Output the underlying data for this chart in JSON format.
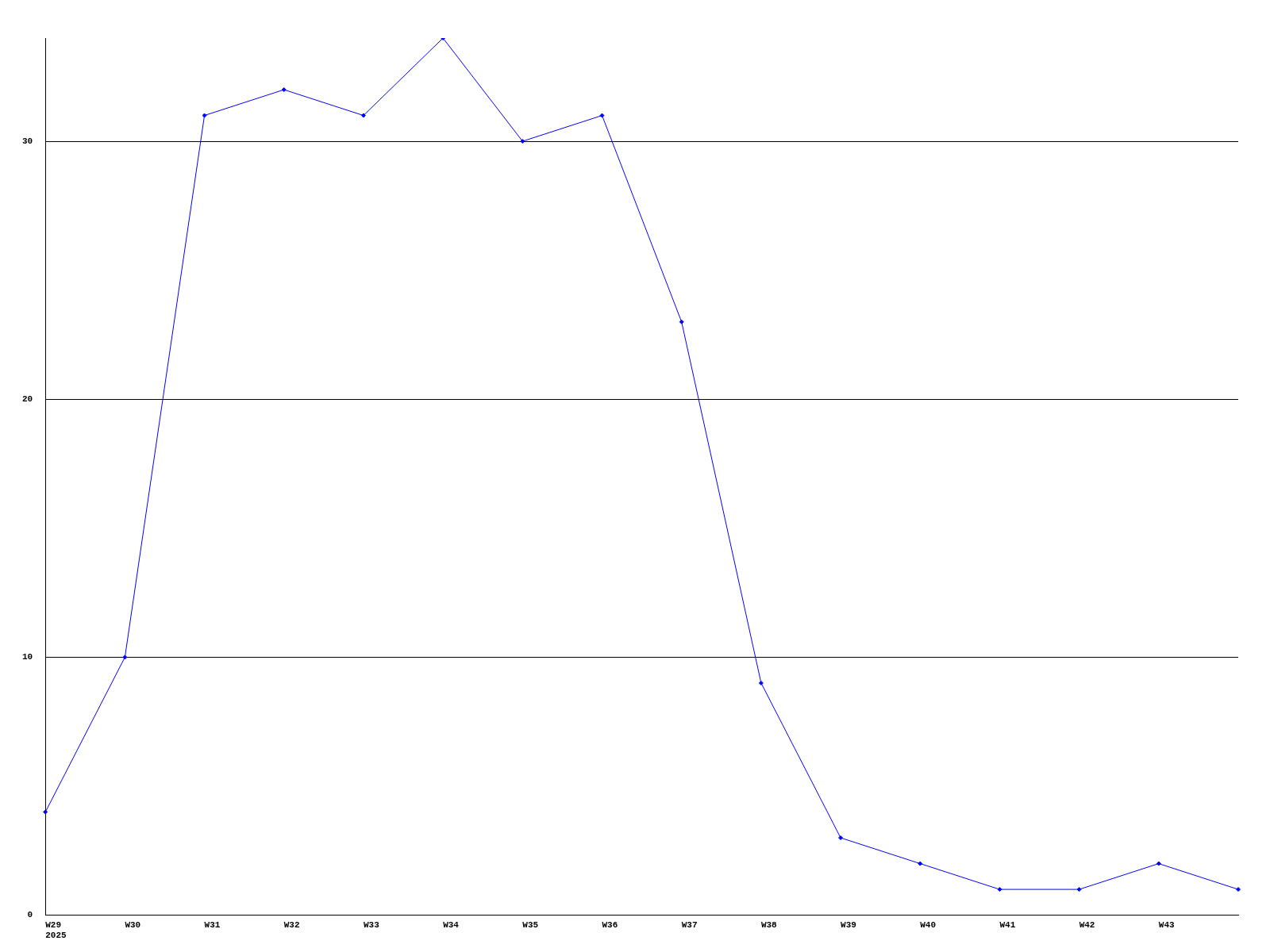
{
  "chart_data": {
    "type": "line",
    "categories": [
      "W29\n2025",
      "W30",
      "W31",
      "W32",
      "W33",
      "W34",
      "W35",
      "W36",
      "W37",
      "W38",
      "W39",
      "W40",
      "W41",
      "W42",
      "W43",
      null
    ],
    "series": [
      {
        "color": "#0000ff",
        "values": [
          4,
          10,
          31,
          32,
          31,
          34,
          30,
          31,
          23,
          9,
          3,
          2,
          1,
          1,
          2,
          1
        ]
      }
    ],
    "ylim": [
      0,
      34
    ],
    "yticks": [
      0,
      10,
      20,
      30
    ],
    "grid": "y",
    "legend": false,
    "marker": "diamond",
    "line_style": "solid"
  }
}
